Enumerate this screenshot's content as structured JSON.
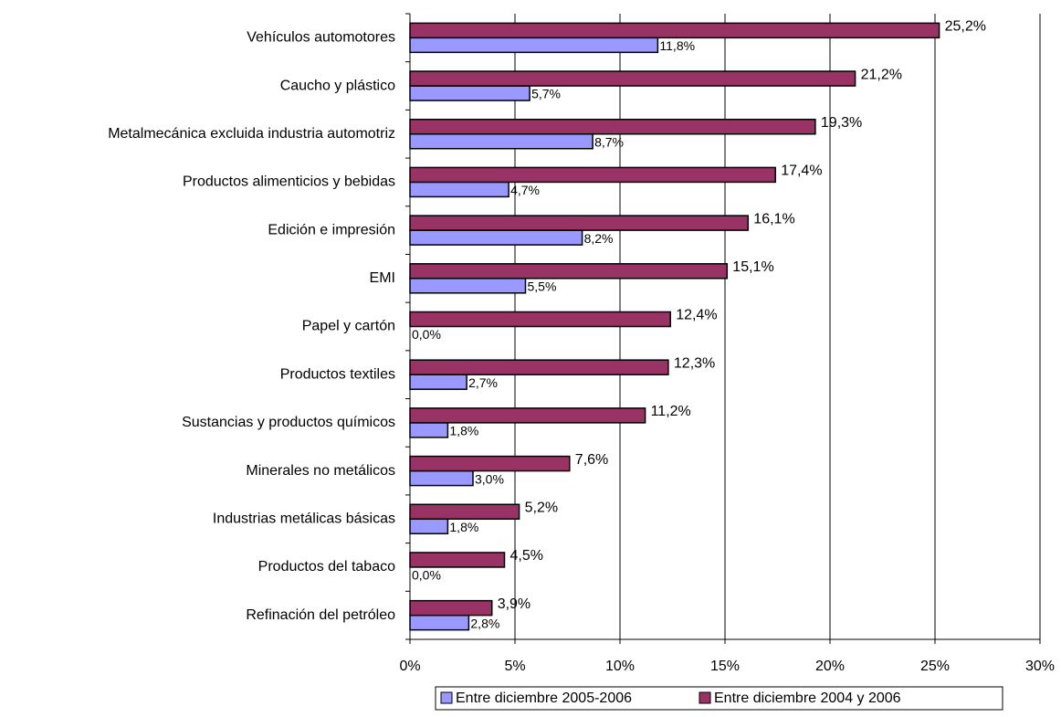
{
  "chart_data": {
    "type": "bar",
    "orientation": "horizontal",
    "categories": [
      "Vehículos automotores",
      "Caucho y plástico",
      "Metalmecánica excluida industria automotriz",
      "Productos alimenticios y bebidas",
      "Edición e impresión",
      "EMI",
      "Papel y cartón",
      "Productos textiles",
      "Sustancias y productos químicos",
      "Minerales no metálicos",
      "Industrias metálicas básicas",
      "Productos del tabaco",
      "Refinación del petróleo"
    ],
    "series": [
      {
        "name": "Entre diciembre 2005-2006",
        "color": "#9999ff",
        "values": [
          11.8,
          5.7,
          8.7,
          4.7,
          8.2,
          5.5,
          0.0,
          2.7,
          1.8,
          3.0,
          1.8,
          0.0,
          2.8
        ],
        "value_labels": [
          "11,8%",
          "5,7%",
          "8,7%",
          "4,7%",
          "8,2%",
          "5,5%",
          "0,0%",
          "2,7%",
          "1,8%",
          "3,0%",
          "1,8%",
          "0,0%",
          "2,8%"
        ]
      },
      {
        "name": "Entre diciembre 2004 y 2006",
        "color": "#993366",
        "values": [
          25.2,
          21.2,
          19.3,
          17.4,
          16.1,
          15.1,
          12.4,
          12.3,
          11.2,
          7.6,
          5.2,
          4.5,
          3.9
        ],
        "value_labels": [
          "25,2%",
          "21,2%",
          "19,3%",
          "17,4%",
          "16,1%",
          "15,1%",
          "12,4%",
          "12,3%",
          "11,2%",
          "7,6%",
          "5,2%",
          "4,5%",
          "3,9%"
        ]
      }
    ],
    "xlim": [
      0,
      30
    ],
    "xticks": [
      {
        "value": 0,
        "label": "0%"
      },
      {
        "value": 5,
        "label": "5%"
      },
      {
        "value": 10,
        "label": "10%"
      },
      {
        "value": 15,
        "label": "15%"
      },
      {
        "value": 20,
        "label": "20%"
      },
      {
        "value": 25,
        "label": "25%"
      },
      {
        "value": 30,
        "label": "30%"
      }
    ],
    "grid": true,
    "legend": "bottom"
  }
}
